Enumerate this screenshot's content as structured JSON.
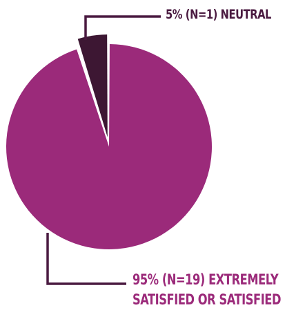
{
  "chart_data": {
    "type": "pie",
    "slices": [
      {
        "category": "Extremely Satisfied or Satisfied",
        "percent": 95,
        "n": 19,
        "label_lines": [
          "95% (N=19) EXTREMELY",
          "SATISFIED OR SATISFIED"
        ],
        "color": "#9b2a7a",
        "exploded": false
      },
      {
        "category": "Neutral",
        "percent": 5,
        "n": 1,
        "label_lines": [
          "5% (N=1) NEUTRAL"
        ],
        "color": "#3d1733",
        "exploded": true
      }
    ]
  },
  "colors": {
    "leader_line": "#4a1a40",
    "label_text": "#4a1a40",
    "satisfied_label_text": "#9b2a7a"
  }
}
